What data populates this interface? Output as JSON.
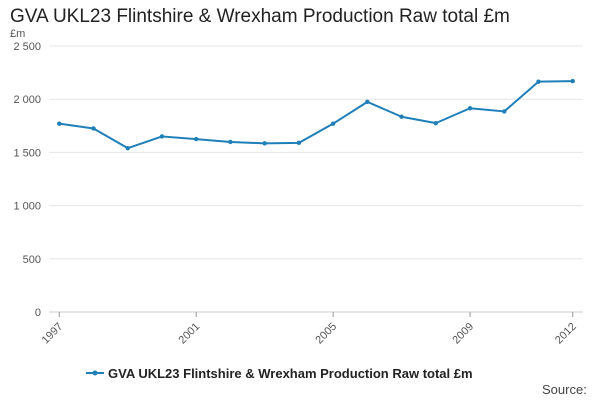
{
  "chart_data": {
    "type": "line",
    "title": "GVA UKL23 Flintshire & Wrexham Production Raw total £m",
    "ylabel": "£m",
    "xlabel": "",
    "x": [
      1997,
      1998,
      1999,
      2000,
      2001,
      2002,
      2003,
      2004,
      2005,
      2006,
      2007,
      2008,
      2009,
      2010,
      2011,
      2012
    ],
    "x_tick_labels": [
      "1997",
      "2001",
      "2005",
      "2009",
      "2012"
    ],
    "x_tick_values": [
      1997,
      2001,
      2005,
      2009,
      2012
    ],
    "y_tick_labels": [
      "0",
      "500",
      "1 000",
      "1 500",
      "2 000",
      "2 500"
    ],
    "y_tick_values": [
      0,
      500,
      1000,
      1500,
      2000,
      2500
    ],
    "ylim": [
      0,
      2500
    ],
    "grid": true,
    "legend_position": "bottom-center",
    "series": [
      {
        "name": "GVA UKL23 Flintshire & Wrexham Production Raw total £m",
        "color": "#1f7fb8",
        "values": [
          1770,
          1725,
          1540,
          1650,
          1625,
          1598,
          1585,
          1590,
          1770,
          1975,
          1835,
          1775,
          1915,
          1885,
          2165,
          2170
        ]
      }
    ],
    "source_label": "Source:"
  }
}
